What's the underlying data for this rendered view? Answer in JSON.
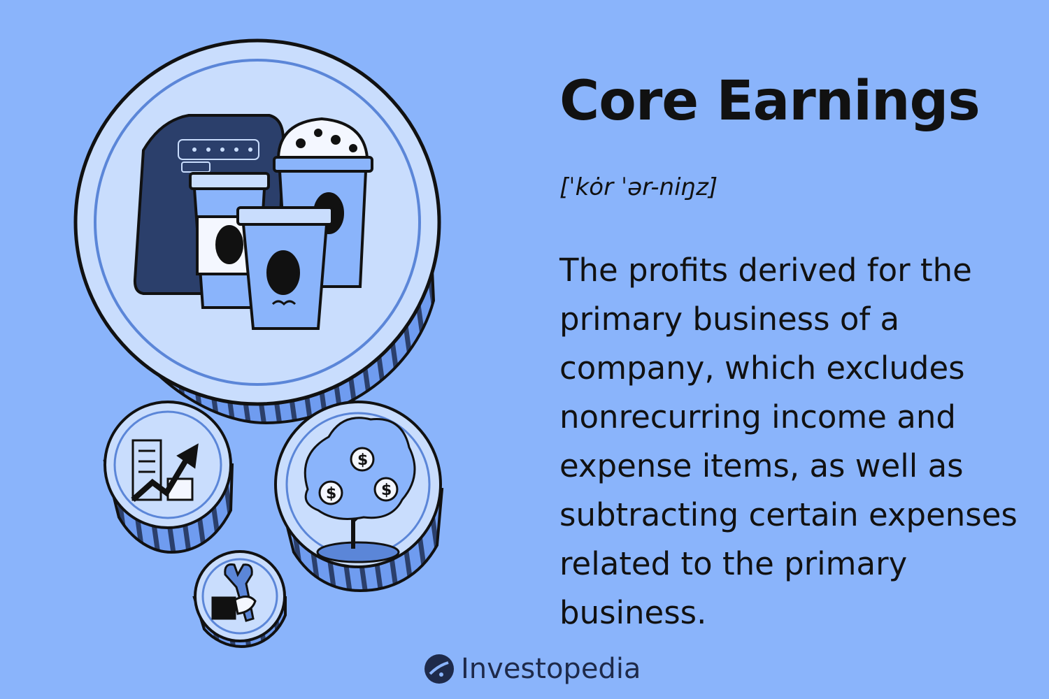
{
  "title": "Core Earnings",
  "pronunciation": "[ˈkȯr ˈər-niŋz]",
  "definition": "The profits derived for the primary business of a company, which excludes nonrecurring income and expense items, as well as subtracting certain expenses related to the primary business.",
  "brand": "Investopedia",
  "colors": {
    "background": "#8ab4fb",
    "coin_face": "#c9ddfd",
    "coin_side": "#6f9cf0",
    "dark_blue": "#2b3f6b",
    "mid_blue": "#5b86d8",
    "text": "#111111"
  },
  "icons": [
    "coffee-bag-icon",
    "coffee-cup-icon",
    "building-growth-icon",
    "money-tree-icon",
    "wrench-hand-icon",
    "investopedia-logo-icon"
  ]
}
